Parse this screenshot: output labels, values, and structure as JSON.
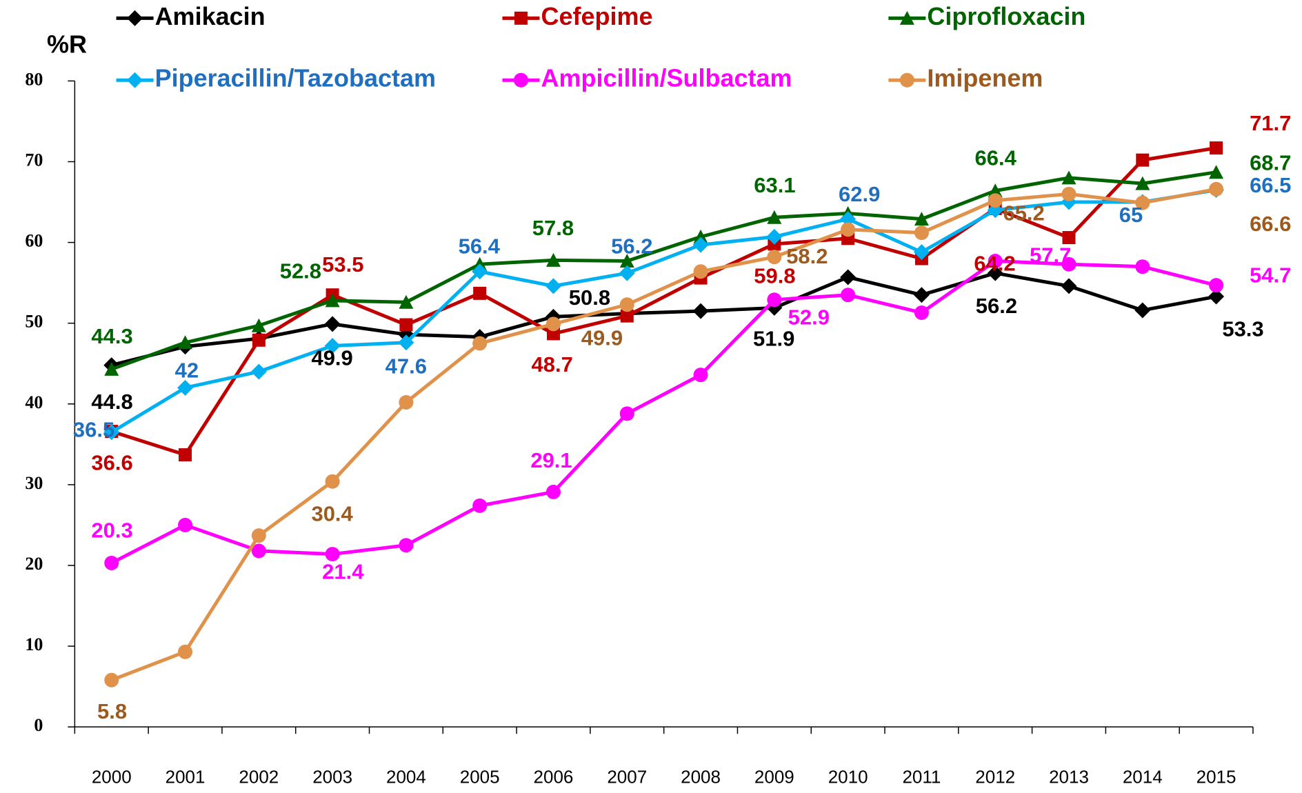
{
  "chart_data": {
    "type": "line",
    "y_label": "%R",
    "categories": [
      "2000",
      "2001",
      "2002",
      "2003",
      "2004",
      "2005",
      "2006",
      "2007",
      "2008",
      "2009",
      "2010",
      "2011",
      "2012",
      "2013",
      "2014",
      "2015"
    ],
    "ylim": [
      0,
      80
    ],
    "yticks": [
      0,
      10,
      20,
      30,
      40,
      50,
      60,
      70,
      80
    ],
    "grid": false,
    "series": [
      {
        "name": "Amikacin",
        "color": "#000000",
        "label_color": "#000000",
        "marker": "diamond",
        "values": [
          44.8,
          47.1,
          48.1,
          49.9,
          48.6,
          48.3,
          50.8,
          51.2,
          51.5,
          51.9,
          55.7,
          53.5,
          56.2,
          54.6,
          51.6,
          53.3
        ]
      },
      {
        "name": "Cefepime",
        "color": "#c00000",
        "label_color": "#c00000",
        "marker": "square",
        "values": [
          36.6,
          33.7,
          47.9,
          53.5,
          49.8,
          53.7,
          48.7,
          50.9,
          55.6,
          59.8,
          60.5,
          58.0,
          64.2,
          60.6,
          70.2,
          71.7
        ]
      },
      {
        "name": "Ciprofloxacin",
        "color": "#006400",
        "label_color": "#006400",
        "marker": "triangle",
        "values": [
          44.3,
          47.6,
          49.7,
          52.8,
          52.6,
          57.3,
          57.8,
          57.7,
          60.7,
          63.1,
          63.6,
          62.9,
          66.4,
          68.0,
          67.3,
          68.7
        ]
      },
      {
        "name": "Piperacillin/Tazobactam",
        "color": "#00b0f0",
        "label_color": "#1f6fc0",
        "marker": "diamond",
        "values": [
          36.5,
          42,
          44.0,
          47.2,
          47.6,
          56.4,
          54.6,
          56.2,
          59.7,
          60.7,
          62.9,
          58.8,
          64.0,
          65.0,
          65,
          66.5
        ]
      },
      {
        "name": "Ampicillin/Sulbactam",
        "color": "#ff00ff",
        "label_color": "#ff00ff",
        "marker": "circle",
        "values": [
          20.3,
          25.0,
          21.8,
          21.4,
          22.5,
          27.4,
          29.1,
          38.8,
          43.6,
          52.9,
          53.5,
          51.3,
          57.7,
          57.3,
          57.0,
          54.7
        ]
      },
      {
        "name": "Imipenem",
        "color": "#e0924a",
        "label_color": "#9c5a1e",
        "marker": "circle",
        "values": [
          5.8,
          9.3,
          23.7,
          30.4,
          40.2,
          47.5,
          49.9,
          52.3,
          56.4,
          58.2,
          61.6,
          61.2,
          65.2,
          66.0,
          64.9,
          66.6
        ]
      }
    ]
  }
}
